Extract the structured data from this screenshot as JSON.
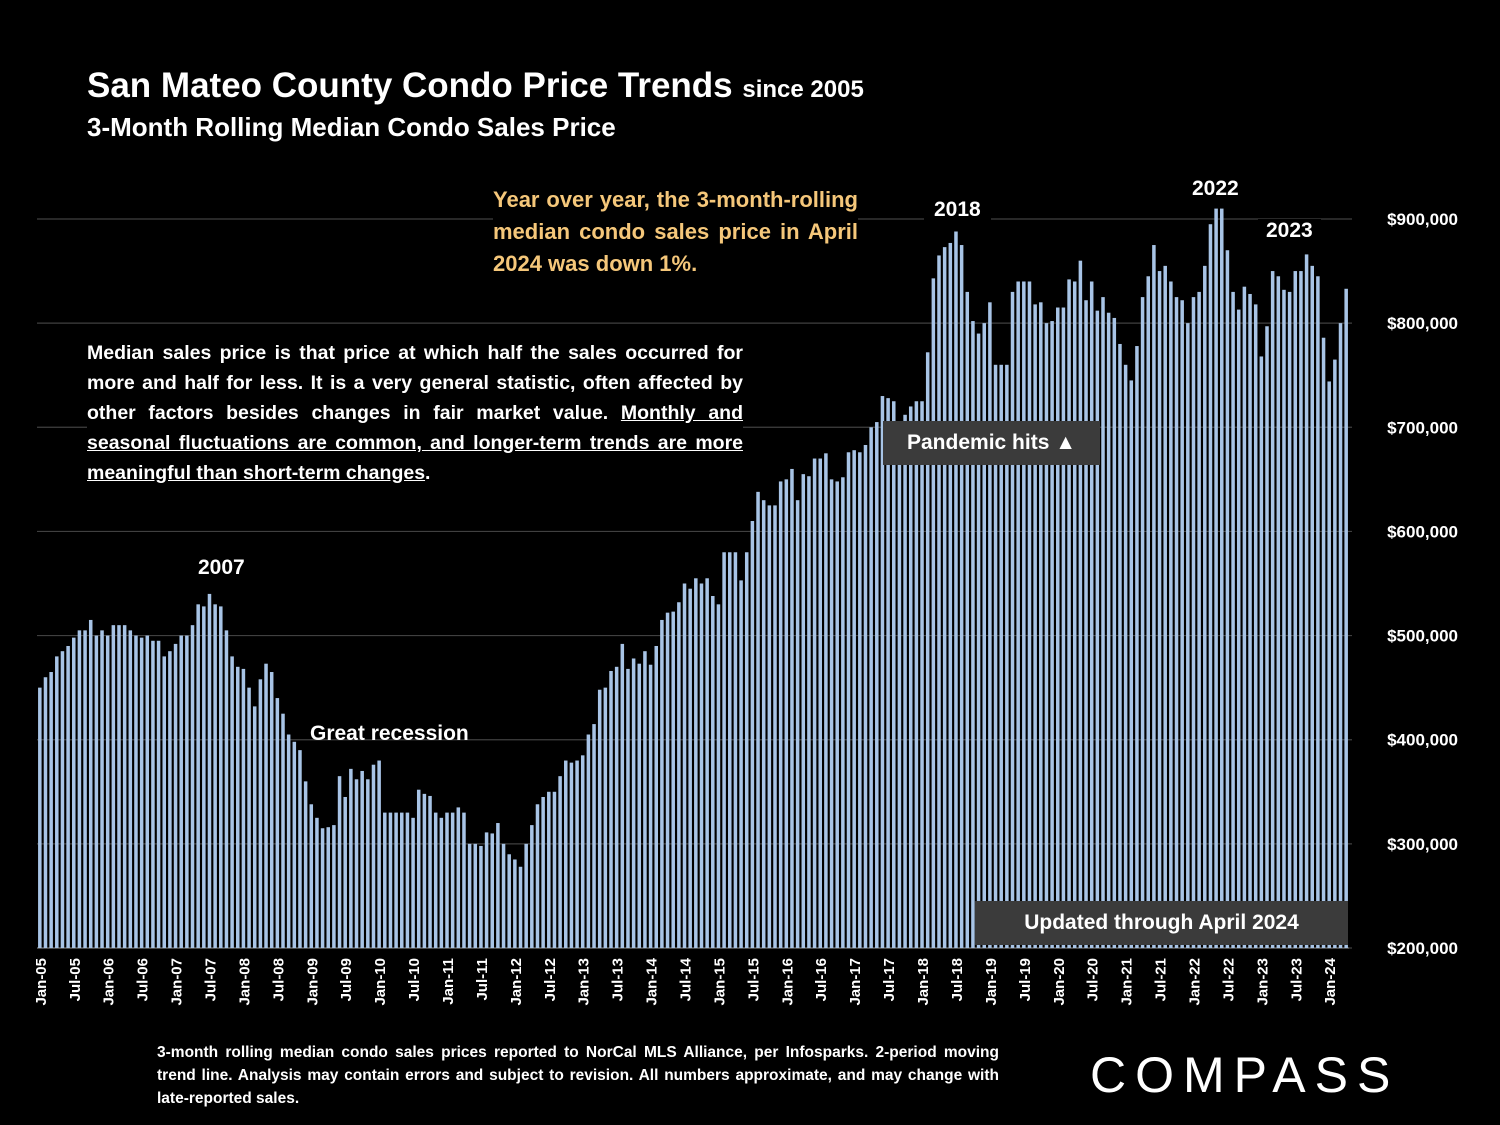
{
  "title": "San Mateo County Condo Price Trends",
  "title_suffix": "since 2005",
  "subtitle": "3-Month Rolling Median Condo Sales Price",
  "callout": "Year over year, the 3-month-rolling median condo sales price in April 2024 was down 1%.",
  "note_plain": "Median sales price is that price at which half the sales occurred for more and half for less. It is a very general statistic, often affected by other factors besides changes in fair market value. ",
  "note_underlined": "Monthly and seasonal fluctuations are common, and longer-term trends are more meaningful than short-term changes",
  "note_end": ".",
  "labels": {
    "y2007": "2007",
    "great_recession": "Great recession",
    "y2018": "2018",
    "y2022": "2022",
    "y2023": "2023",
    "pandemic": "Pandemic hits ▲",
    "updated": "Updated through April 2024"
  },
  "footer": "3-month rolling median condo sales prices reported to NorCal MLS Alliance, per Infosparks. 2-period moving trend line. Analysis may contain errors and subject to revision. All numbers approximate, and may change with late-reported sales.",
  "logo": "COMPASS",
  "colors": {
    "bar": "#a8c4e6",
    "callout": "#f5c77a",
    "grid": "#404040",
    "box": "#3b3b3b"
  },
  "chart_data": {
    "type": "bar",
    "start": "Jan-05",
    "end": "Apr-24",
    "ylim": [
      200000,
      900000
    ],
    "yticks": [
      200000,
      300000,
      400000,
      500000,
      600000,
      700000,
      800000,
      900000
    ],
    "ytick_labels": [
      "$200,000",
      "$300,000",
      "$400,000",
      "$500,000",
      "$600,000",
      "$700,000",
      "$800,000",
      "$900,000"
    ],
    "xtick_labels": [
      "Jan-05",
      "Jul-05",
      "Jan-06",
      "Jul-06",
      "Jan-07",
      "Jul-07",
      "Jan-08",
      "Jul-08",
      "Jan-09",
      "Jul-09",
      "Jan-10",
      "Jul-10",
      "Jan-11",
      "Jul-11",
      "Jan-12",
      "Jul-12",
      "Jan-13",
      "Jul-13",
      "Jan-14",
      "Jul-14",
      "Jan-15",
      "Jul-15",
      "Jan-16",
      "Jul-16",
      "Jan-17",
      "Jul-17",
      "Jan-18",
      "Jul-18",
      "Jan-19",
      "Jul-19",
      "Jan-20",
      "Jul-20",
      "Jan-21",
      "Jul-21",
      "Jan-22",
      "Jul-22",
      "Jan-23",
      "Jul-23",
      "Jan-24"
    ],
    "grid": true,
    "values": [
      450000,
      460000,
      465000,
      480000,
      485000,
      490000,
      498000,
      505000,
      505000,
      515000,
      500000,
      505000,
      500000,
      510000,
      510000,
      510000,
      505000,
      500000,
      498000,
      500000,
      495000,
      495000,
      480000,
      485000,
      492000,
      500000,
      500000,
      510000,
      530000,
      528000,
      540000,
      530000,
      528000,
      505000,
      480000,
      470000,
      468000,
      450000,
      432000,
      458000,
      473000,
      465000,
      440000,
      425000,
      405000,
      398000,
      390000,
      360000,
      338000,
      325000,
      315000,
      316000,
      318000,
      365000,
      345000,
      372000,
      362000,
      370000,
      362000,
      376000,
      380000,
      330000,
      330000,
      330000,
      330000,
      330000,
      325000,
      352000,
      348000,
      346000,
      330000,
      325000,
      330000,
      330000,
      335000,
      330000,
      300000,
      300000,
      298000,
      311000,
      310000,
      320000,
      300000,
      290000,
      285000,
      278000,
      300000,
      318000,
      338000,
      345000,
      350000,
      350000,
      365000,
      380000,
      378000,
      380000,
      385000,
      405000,
      415000,
      448000,
      450000,
      466000,
      470000,
      492000,
      468000,
      478000,
      473000,
      485000,
      472000,
      490000,
      515000,
      522000,
      523000,
      532000,
      550000,
      545000,
      555000,
      550000,
      555000,
      538000,
      530000,
      580000,
      580000,
      580000,
      553000,
      580000,
      610000,
      638000,
      630000,
      625000,
      625000,
      648000,
      650000,
      660000,
      630000,
      655000,
      653000,
      670000,
      670000,
      675000,
      650000,
      648000,
      652000,
      676000,
      678000,
      676000,
      683000,
      700000,
      705000,
      730000,
      728000,
      725000,
      700000,
      712000,
      720000,
      725000,
      725000,
      772000,
      843000,
      865000,
      873000,
      877000,
      888000,
      875000,
      830000,
      802000,
      790000,
      800000,
      820000,
      760000,
      760000,
      760000,
      830000,
      840000,
      840000,
      840000,
      818000,
      820000,
      800000,
      802000,
      815000,
      815000,
      842000,
      840000,
      860000,
      822000,
      840000,
      812000,
      825000,
      810000,
      805000,
      780000,
      760000,
      745000,
      778000,
      825000,
      845000,
      875000,
      850000,
      855000,
      840000,
      825000,
      822000,
      800000,
      825000,
      830000,
      855000,
      895000,
      910000,
      910000,
      870000,
      830000,
      813000,
      835000,
      828000,
      818000,
      768000,
      797000,
      850000,
      845000,
      832000,
      830000,
      850000,
      850000,
      866000,
      855000,
      845000,
      786000,
      744000,
      765000,
      800000,
      833000
    ]
  }
}
